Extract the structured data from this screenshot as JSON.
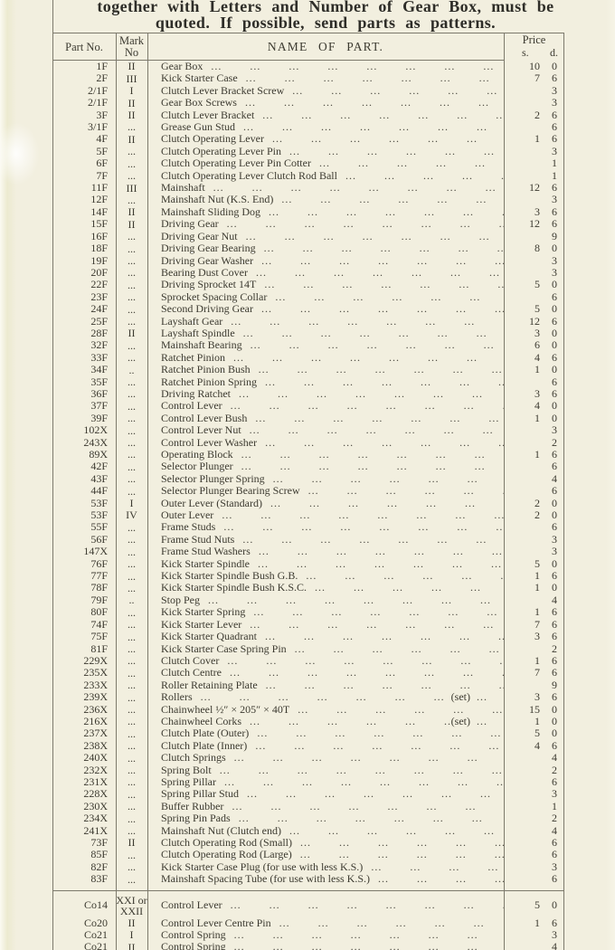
{
  "colors": {
    "paper": "#f2efdf",
    "ink": "#3c3a30",
    "rule": "#7d7a6c"
  },
  "heading": {
    "line1": "together with Letters and Number of Gear Box, must be",
    "line2": "quoted.  If possible, send parts as patterns."
  },
  "table": {
    "headers": {
      "part_no": "Part No.",
      "mark_no": "Mark No",
      "name": "NAME OF PART.",
      "price": "Price",
      "shillings": "s.",
      "pence": "d."
    },
    "leader": "... ... ... ... ... ... ... ... ... ... ...",
    "rows": [
      {
        "no": "1F",
        "mark": "II",
        "name": "Gear Box",
        "s": "10",
        "d": "0"
      },
      {
        "no": "2F",
        "mark": "III",
        "name": "Kick Starter Case",
        "s": "7",
        "d": "6"
      },
      {
        "no": "2/1F",
        "mark": "I",
        "name": "Clutch Lever Bracket Screw",
        "s": "",
        "d": "3"
      },
      {
        "no": "2/1F",
        "mark": "II",
        "name": "Gear Box Screws",
        "s": "",
        "d": "3"
      },
      {
        "no": "3F",
        "mark": "II",
        "name": "Clutch Lever Bracket",
        "s": "2",
        "d": "6"
      },
      {
        "no": "3/1F",
        "mark": "...",
        "name": "Grease Gun Stud",
        "s": "",
        "d": "6"
      },
      {
        "no": "4F",
        "mark": "II",
        "name": "Clutch Operating Lever",
        "s": "1",
        "d": "6"
      },
      {
        "no": "5F",
        "mark": "...",
        "name": "Clutch Operating Lever Pin",
        "s": "",
        "d": "3"
      },
      {
        "no": "6F",
        "mark": "...",
        "name": "Clutch Operating Lever Pin Cotter",
        "s": "",
        "d": "1"
      },
      {
        "no": "7F",
        "mark": "...",
        "name": "Clutch Operating Lever Clutch Rod Ball",
        "s": "",
        "d": "1"
      },
      {
        "no": "11F",
        "mark": "III",
        "name": "Mainshaft",
        "s": "12",
        "d": "6"
      },
      {
        "no": "12F",
        "mark": "...",
        "name": "Mainshaft Nut (K.S. End)",
        "s": "",
        "d": "3"
      },
      {
        "no": "14F",
        "mark": "II",
        "name": "Mainshaft Sliding Dog",
        "s": "3",
        "d": "6"
      },
      {
        "no": "15F",
        "mark": "II",
        "name": "Driving Gear",
        "s": "12",
        "d": "6"
      },
      {
        "no": "16F",
        "mark": "...",
        "name": "Driving Gear Nut",
        "s": "",
        "d": "9"
      },
      {
        "no": "18F",
        "mark": "...",
        "name": "Driving Gear Bearing",
        "s": "8",
        "d": "0"
      },
      {
        "no": "19F",
        "mark": "...",
        "name": "Driving Gear Washer",
        "s": "",
        "d": "3"
      },
      {
        "no": "20F",
        "mark": "...",
        "name": "Bearing Dust Cover",
        "s": "",
        "d": "3"
      },
      {
        "no": "22F",
        "mark": "...",
        "name": "Driving Sprocket 14T",
        "s": "5",
        "d": "0"
      },
      {
        "no": "23F",
        "mark": "...",
        "name": "Sprocket Spacing Collar",
        "s": "",
        "d": "6"
      },
      {
        "no": "24F",
        "mark": "...",
        "name": "Second Driving Gear",
        "s": "5",
        "d": "0"
      },
      {
        "no": "25F",
        "mark": "...",
        "name": "Layshaft Gear",
        "s": "12",
        "d": "6"
      },
      {
        "no": "28F",
        "mark": "II",
        "name": "Layshaft Spindle",
        "s": "3",
        "d": "0"
      },
      {
        "no": "32F",
        "mark": "...",
        "name": "Mainshaft Bearing",
        "s": "6",
        "d": "0"
      },
      {
        "no": "33F",
        "mark": "...",
        "name": "Ratchet Pinion",
        "s": "4",
        "d": "6"
      },
      {
        "no": "34F",
        "mark": "..",
        "name": "Ratchet Pinion Bush",
        "s": "1",
        "d": "0"
      },
      {
        "no": "35F",
        "mark": "...",
        "name": "Ratchet Pinion Spring",
        "s": "",
        "d": "6"
      },
      {
        "no": "36F",
        "mark": "...",
        "name": "Driving Ratchet",
        "s": "3",
        "d": "6"
      },
      {
        "no": "37F",
        "mark": "...",
        "name": "Control Lever",
        "s": "4",
        "d": "0"
      },
      {
        "no": "39F",
        "mark": "...",
        "name": "Control Lever Bush",
        "s": "1",
        "d": "0"
      },
      {
        "no": "102X",
        "mark": "...",
        "name": "Control Lever Nut",
        "s": "",
        "d": "3"
      },
      {
        "no": "243X",
        "mark": "...",
        "name": "Control Lever Washer",
        "s": "",
        "d": "2"
      },
      {
        "no": "89X",
        "mark": "...",
        "name": "Operating Block",
        "s": "1",
        "d": "6"
      },
      {
        "no": "42F",
        "mark": "...",
        "name": "Selector Plunger",
        "s": "",
        "d": "6"
      },
      {
        "no": "43F",
        "mark": "...",
        "name": "Selector Plunger Spring",
        "s": "",
        "d": "4"
      },
      {
        "no": "44F",
        "mark": "...",
        "name": "Selector Plunger Bearing Screw",
        "s": "",
        "d": "6"
      },
      {
        "no": "53F",
        "mark": "I",
        "name": "Outer Lever (Standard)",
        "s": "2",
        "d": "0"
      },
      {
        "no": "53F",
        "mark": "IV",
        "name": "Outer Lever",
        "s": "2",
        "d": "0"
      },
      {
        "no": "55F",
        "mark": "...",
        "name": "Frame Studs",
        "s": "",
        "d": "6"
      },
      {
        "no": "56F",
        "mark": "...",
        "name": "Frame Stud Nuts",
        "s": "",
        "d": "3"
      },
      {
        "no": "147X",
        "mark": "...",
        "name": "Frame Stud Washers",
        "s": "",
        "d": "3"
      },
      {
        "no": "76F",
        "mark": "...",
        "name": "Kick Starter Spindle",
        "s": "5",
        "d": "0"
      },
      {
        "no": "77F",
        "mark": "...",
        "name": "Kick Starter Spindle Bush G.B.",
        "s": "1",
        "d": "6"
      },
      {
        "no": "78F",
        "mark": "...",
        "name": "Kick Starter Spindle Bush K.S.C.",
        "s": "1",
        "d": "0"
      },
      {
        "no": "79F",
        "mark": "..",
        "name": "Stop Peg",
        "s": "",
        "d": "4"
      },
      {
        "no": "80F",
        "mark": "...",
        "name": "Kick Starter Spring",
        "s": "1",
        "d": "6"
      },
      {
        "no": "74F",
        "mark": "...",
        "name": "Kick Starter Lever",
        "s": "7",
        "d": "6"
      },
      {
        "no": "75F",
        "mark": "...",
        "name": "Kick Starter Quadrant",
        "s": "3",
        "d": "6"
      },
      {
        "no": "81F",
        "mark": "...",
        "name": "Kick Starter Case Spring Pin",
        "s": "",
        "d": "2"
      },
      {
        "no": "229X",
        "mark": "...",
        "name": "Clutch Cover",
        "s": "1",
        "d": "6"
      },
      {
        "no": "235X",
        "mark": "...",
        "name": "Clutch Centre",
        "s": "7",
        "d": "6"
      },
      {
        "no": "233X",
        "mark": "...",
        "name": "Roller Retaining Plate",
        "s": "",
        "d": "9"
      },
      {
        "no": "239X",
        "mark": "...",
        "name": "Rollers",
        "note": "(set)",
        "s": "3",
        "d": "6"
      },
      {
        "no": "236X",
        "mark": "...",
        "name": "Chainwheel ½″ × 205″ × 40T",
        "s": "15",
        "d": "0"
      },
      {
        "no": "216X",
        "mark": "...",
        "name": "Chainwheel Corks",
        "note": "(set)",
        "s": "1",
        "d": "0"
      },
      {
        "no": "237X",
        "mark": "...",
        "name": "Clutch Plate (Outer)",
        "s": "5",
        "d": "0"
      },
      {
        "no": "238X",
        "mark": "...",
        "name": "Clutch Plate (Inner)",
        "s": "4",
        "d": "6"
      },
      {
        "no": "240X",
        "mark": "...",
        "name": "Clutch Springs",
        "s": "",
        "d": "4"
      },
      {
        "no": "232X",
        "mark": "...",
        "name": "Spring Bolt",
        "s": "",
        "d": "2"
      },
      {
        "no": "231X",
        "mark": "...",
        "name": "Spring Pillar",
        "s": "",
        "d": "6"
      },
      {
        "no": "228X",
        "mark": "...",
        "name": "Spring Pillar Stud",
        "s": "",
        "d": "3"
      },
      {
        "no": "230X",
        "mark": "...",
        "name": "Buffer Rubber",
        "s": "",
        "d": "1"
      },
      {
        "no": "234X",
        "mark": "...",
        "name": "Spring Pin Pads",
        "s": "",
        "d": "2"
      },
      {
        "no": "241X",
        "mark": "...",
        "name": "Mainshaft Nut (Clutch end)",
        "s": "",
        "d": "4"
      },
      {
        "no": "73F",
        "mark": "II",
        "name": "Clutch Operating Rod (Small)",
        "s": "",
        "d": "6"
      },
      {
        "no": "85F",
        "mark": "...",
        "name": "Clutch Operating Rod (Large)",
        "s": "",
        "d": "6"
      },
      {
        "no": "82F",
        "mark": "...",
        "name": "Kick Starter Case Plug (for use with less K.S.)",
        "s": "",
        "d": "3"
      },
      {
        "no": "83F",
        "mark": "...",
        "name": "Mainshaft Spacing Tube (for use with less K.S.)",
        "s": "",
        "d": "6"
      },
      {
        "no": "Co14",
        "mark": "XXI or XXII",
        "name": "Control Lever",
        "s": "5",
        "d": "0",
        "rule_before": true
      },
      {
        "no": "Co20",
        "mark": "II",
        "name": "Control Lever Centre Pin",
        "s": "1",
        "d": "6"
      },
      {
        "no": "Co21",
        "mark": "I",
        "name": "Control Spring",
        "s": "",
        "d": "3"
      },
      {
        "no": "Co21",
        "mark": "II",
        "name": "Control Spring",
        "s": "",
        "d": "4"
      }
    ]
  }
}
